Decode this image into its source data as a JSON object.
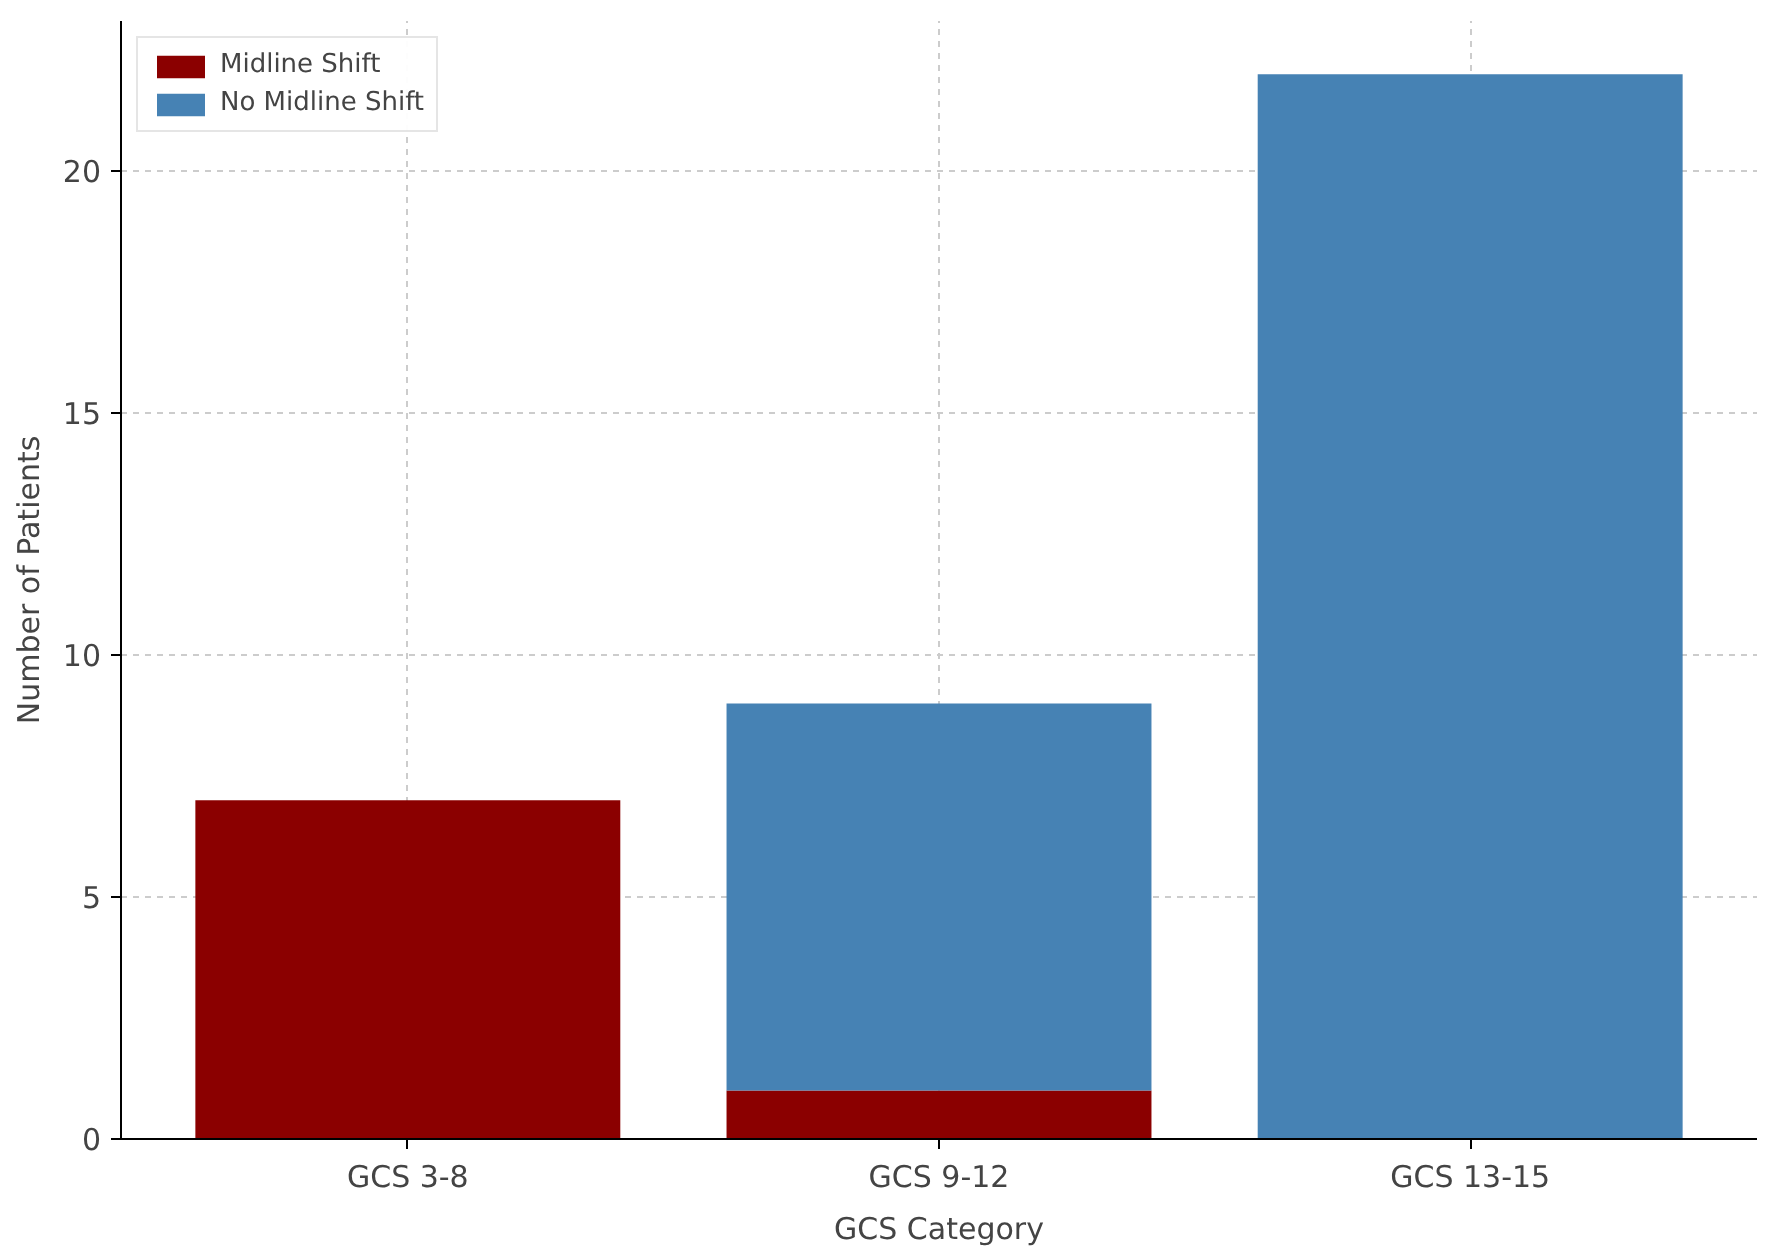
{
  "chart_data": {
    "type": "bar",
    "stacked": true,
    "xlabel": "GCS Category",
    "ylabel": "Number of Patients",
    "categories": [
      "GCS 3-8",
      "GCS 9-12",
      "GCS 13-15"
    ],
    "series": [
      {
        "name": "Midline Shift",
        "color": "#8b0000",
        "values": [
          7,
          1,
          0
        ]
      },
      {
        "name": "No Midline Shift",
        "color": "#4682b4",
        "values": [
          0,
          8,
          22
        ]
      }
    ],
    "ylim": [
      0,
      23.1
    ],
    "yticks": [
      0,
      5,
      10,
      15,
      20
    ],
    "grid": true,
    "legend": "top left"
  }
}
